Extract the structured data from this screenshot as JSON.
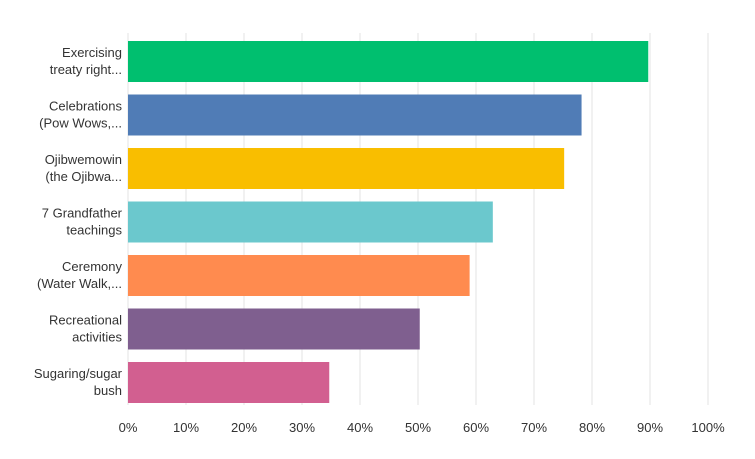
{
  "chart_data": {
    "type": "bar",
    "orientation": "horizontal",
    "categories": [
      [
        "Exercising",
        "treaty right..."
      ],
      [
        "Celebrations",
        "(Pow Wows,..."
      ],
      [
        "Ojibwemowin",
        "(the Ojibwa..."
      ],
      [
        "7 Grandfather",
        "teachings"
      ],
      [
        "Ceremony",
        "(Water Walk,..."
      ],
      [
        "Recreational",
        "activities"
      ],
      [
        "Sugaring/sugar",
        "bush"
      ]
    ],
    "values": [
      89.7,
      78.2,
      75.2,
      62.9,
      58.9,
      50.3,
      34.7
    ],
    "colors": [
      "#00bf6f",
      "#507cb6",
      "#f9be00",
      "#6bc8cd",
      "#ff8b4f",
      "#7f5f8f",
      "#d25f90"
    ],
    "xlim": [
      0,
      100
    ],
    "x_ticks": [
      "0%",
      "10%",
      "20%",
      "30%",
      "40%",
      "50%",
      "60%",
      "70%",
      "80%",
      "90%",
      "100%"
    ],
    "grid": true,
    "title": "",
    "xlabel": "",
    "ylabel": ""
  }
}
